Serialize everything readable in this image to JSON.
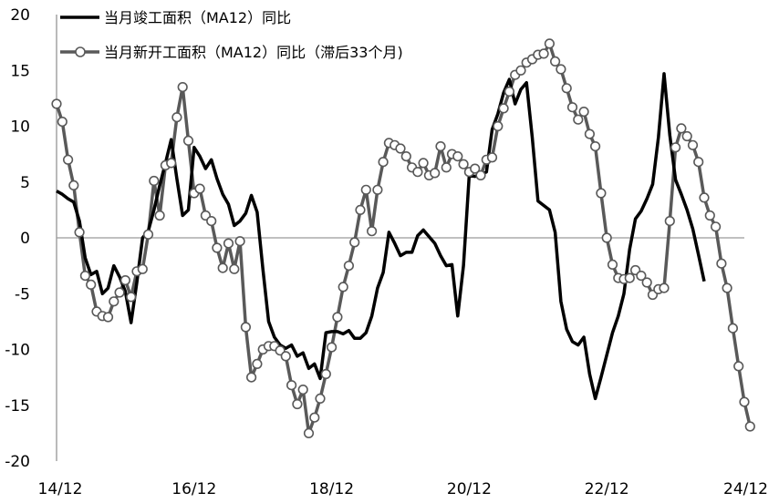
{
  "chart_data": {
    "type": "line",
    "ylim": [
      -20,
      20
    ],
    "y_ticks": [
      "20",
      "15",
      "10",
      "5",
      "0",
      "-5",
      "-10",
      "-15",
      "-20"
    ],
    "x_ticks": [
      "14/12",
      "16/12",
      "18/12",
      "20/12",
      "22/12",
      "24/12"
    ],
    "grid": false,
    "legend_position": "top-left",
    "colors": {
      "completion": "#000000",
      "new_start": "#595959",
      "marker_fill": "#ffffff",
      "zero_line": "#9b9b9b",
      "axis": "#8c8c8c"
    },
    "series": [
      {
        "name": "当月竣工面积（MA12）同比",
        "start_index": 0,
        "values": [
          4.2,
          3.9,
          3.5,
          3.2,
          1.5,
          -1.8,
          -3.3,
          -3.0,
          -5.0,
          -4.5,
          -2.5,
          -3.5,
          -4.8,
          -7.6,
          -4.0,
          0.0,
          0.6,
          2.5,
          4.7,
          6.7,
          8.8,
          5.3,
          2.0,
          2.5,
          8.1,
          7.3,
          6.2,
          7.0,
          5.3,
          3.9,
          3.0,
          1.1,
          1.5,
          2.2,
          3.8,
          2.3,
          -2.8,
          -7.5,
          -8.9,
          -9.6,
          -9.9,
          -9.6,
          -10.6,
          -10.3,
          -11.7,
          -11.3,
          -12.6,
          -8.5,
          -8.4,
          -8.4,
          -8.6,
          -8.3,
          -9.0,
          -9.0,
          -8.5,
          -7.0,
          -4.5,
          -3.1,
          0.5,
          -0.5,
          -1.6,
          -1.3,
          -1.3,
          0.2,
          0.7,
          0.1,
          -0.5,
          -1.6,
          -2.5,
          -2.4,
          -7.0,
          -2.5,
          5.6,
          5.5,
          5.7,
          5.9,
          9.7,
          11.1,
          13.0,
          14.2,
          12.0,
          13.3,
          13.9,
          9.0,
          3.3,
          2.9,
          2.5,
          0.5,
          -5.7,
          -8.2,
          -9.3,
          -9.6,
          -8.9,
          -12.2,
          -14.4,
          -12.5,
          -10.5,
          -8.5,
          -7.0,
          -5.0,
          -1.0,
          1.7,
          2.4,
          3.5,
          4.8,
          9.0,
          14.7,
          9.2,
          5.2,
          3.9,
          2.5,
          0.8,
          -1.5,
          -3.9
        ]
      },
      {
        "name": "当月新开工面积（MA12）同比（滞后33个月)",
        "start_index": 0,
        "values": [
          12.0,
          10.4,
          7.0,
          4.7,
          0.5,
          -3.4,
          -4.2,
          -6.6,
          -7.0,
          -7.1,
          -5.7,
          -4.9,
          -3.8,
          -5.3,
          -3.0,
          -2.8,
          0.3,
          5.1,
          2.0,
          6.5,
          6.7,
          10.8,
          13.5,
          8.7,
          4.0,
          4.4,
          2.0,
          1.5,
          -0.9,
          -2.7,
          -0.5,
          -2.8,
          -0.3,
          -8.0,
          -12.5,
          -11.3,
          -10.0,
          -9.7,
          -9.7,
          -10.1,
          -10.6,
          -13.2,
          -14.9,
          -13.6,
          -17.5,
          -16.1,
          -14.4,
          -12.2,
          -9.8,
          -7.1,
          -4.4,
          -2.5,
          -0.4,
          2.5,
          4.3,
          0.6,
          4.3,
          6.8,
          8.5,
          8.3,
          8.0,
          7.3,
          6.3,
          5.9,
          6.7,
          5.6,
          5.8,
          8.2,
          6.3,
          7.5,
          7.3,
          6.6,
          5.9,
          6.2,
          5.6,
          7.0,
          7.2,
          10.0,
          11.6,
          13.1,
          14.6,
          15.0,
          15.7,
          16.0,
          16.4,
          16.5,
          17.4,
          15.8,
          15.1,
          13.4,
          11.7,
          10.6,
          11.3,
          9.3,
          8.2,
          4.0,
          0.0,
          -2.4,
          -3.6,
          -3.7,
          -3.6,
          -2.9,
          -3.4,
          -4.0,
          -5.1,
          -4.6,
          -4.5,
          1.5,
          8.1,
          9.8,
          9.1,
          8.3,
          6.8,
          3.6,
          2.0,
          1.0,
          -2.3,
          -4.5,
          -8.1,
          -11.5,
          -14.7,
          -16.9
        ]
      }
    ]
  }
}
